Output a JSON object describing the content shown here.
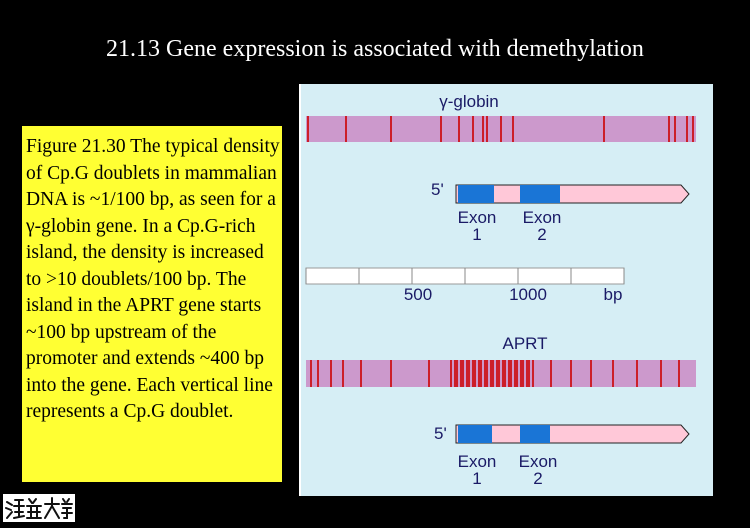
{
  "title": "21.13 Gene expression is associated with demethylation",
  "caption": "Figure 21.30 The typical density of Cp.G doublets in mammalian DNA is ~1/100 bp, as seen for a γ-globin gene. In a Cp.G-rich island, the density is increased to >10 doublets/100 bp. The island in the APRT gene starts ~100 bp upstream of the promoter and extends ~400 bp into the gene. Each vertical line represents a Cp.G doublet.",
  "figure": {
    "globin_label": "γ-globin",
    "aprt_label": "APRT",
    "five_prime": "5'",
    "exon1_top": "Exon",
    "exon1_num": "1",
    "exon2_top": "Exon",
    "exon2_num": "2",
    "scale": {
      "tick_500": "500",
      "tick_1000": "1000",
      "unit": "bp"
    },
    "colors": {
      "methyl_bar": "#cc99cc",
      "cpg_line": "#cc0000",
      "exon": "#1a75d6",
      "gene_body": "#ffc8d8",
      "panel_bg": "#d6eef5",
      "caption_bg": "#ffff33"
    }
  },
  "logo": {
    "text": "清華大學"
  }
}
